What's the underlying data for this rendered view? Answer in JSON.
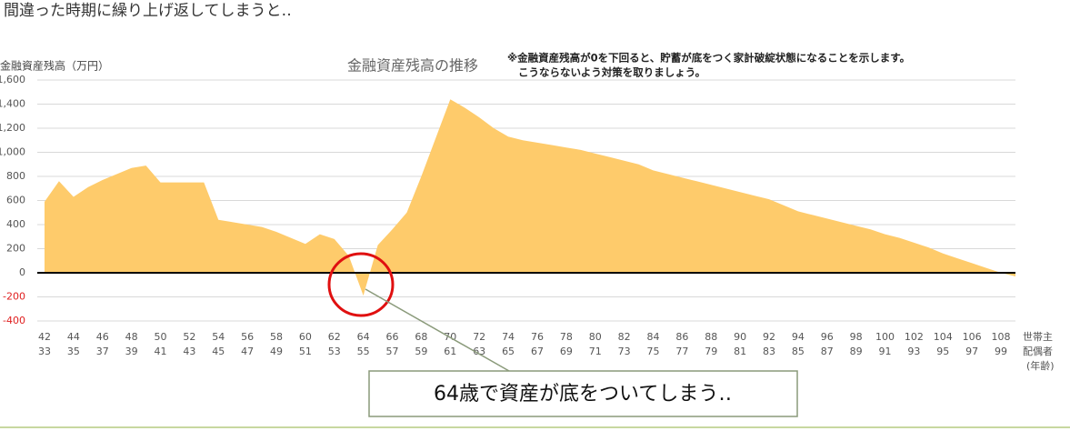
{
  "heading": "間違った時期に繰り上げ返してしまうと‥",
  "callout": "64歳で資産が底をついてしまう‥",
  "chart_data": {
    "type": "area",
    "title": "金融資産残高の推移",
    "y_label": "金融資産残高（万円）",
    "notes": [
      "※金融資産残高が0を下回ると、貯蓄が底をつく家計破綻状態になることを示します。",
      "こうならないよう対策を取りましょう。"
    ],
    "x_label": [
      "世帯主",
      "配偶者",
      "(年齢)"
    ],
    "color": "#fecb6b",
    "grid": true,
    "x": [
      42,
      43,
      44,
      45,
      46,
      47,
      48,
      49,
      50,
      51,
      52,
      53,
      54,
      55,
      56,
      57,
      58,
      59,
      60,
      61,
      62,
      63,
      64,
      65,
      66,
      67,
      68,
      69,
      70,
      71,
      72,
      73,
      74,
      75,
      76,
      77,
      78,
      79,
      80,
      81,
      82,
      83,
      84,
      85,
      86,
      87,
      88,
      89,
      90,
      91,
      92,
      93,
      94,
      95,
      96,
      97,
      98,
      99,
      100,
      101,
      102,
      103,
      104,
      105,
      106,
      107,
      108,
      109
    ],
    "values": [
      590,
      760,
      630,
      710,
      770,
      820,
      870,
      890,
      750,
      750,
      750,
      750,
      440,
      420,
      400,
      380,
      340,
      290,
      240,
      320,
      280,
      140,
      -190,
      230,
      360,
      500,
      800,
      1120,
      1440,
      1370,
      1290,
      1200,
      1130,
      1100,
      1080,
      1060,
      1040,
      1020,
      990,
      960,
      930,
      900,
      850,
      820,
      790,
      760,
      730,
      700,
      670,
      640,
      610,
      560,
      510,
      480,
      450,
      420,
      390,
      360,
      320,
      290,
      250,
      210,
      160,
      120,
      80,
      40,
      0,
      -30
    ],
    "xlim": [
      41.5,
      109
    ],
    "xticks": [
      42,
      44,
      46,
      48,
      50,
      52,
      54,
      56,
      58,
      60,
      62,
      64,
      66,
      68,
      70,
      72,
      74,
      76,
      78,
      80,
      82,
      84,
      86,
      88,
      90,
      92,
      94,
      96,
      98,
      100,
      102,
      104,
      106,
      108
    ],
    "x2ticks": [
      33,
      35,
      37,
      39,
      41,
      43,
      45,
      47,
      49,
      51,
      53,
      55,
      57,
      59,
      61,
      63,
      65,
      67,
      69,
      71,
      73,
      75,
      77,
      79,
      81,
      83,
      85,
      87,
      89,
      91,
      93,
      95,
      97,
      99
    ],
    "ylim": [
      -400,
      1600
    ],
    "yticks": [
      {
        "value": -400,
        "label": "-400"
      },
      {
        "value": -200,
        "label": "-200"
      },
      0,
      200,
      400,
      600,
      800,
      {
        "value": 1000,
        "label": "1,000"
      },
      {
        "value": 1200,
        "label": "1,200"
      },
      {
        "value": 1400,
        "label": "1,400"
      },
      {
        "value": 1600,
        "label": "1,600"
      }
    ],
    "negative_tick_color": "#e02020"
  }
}
